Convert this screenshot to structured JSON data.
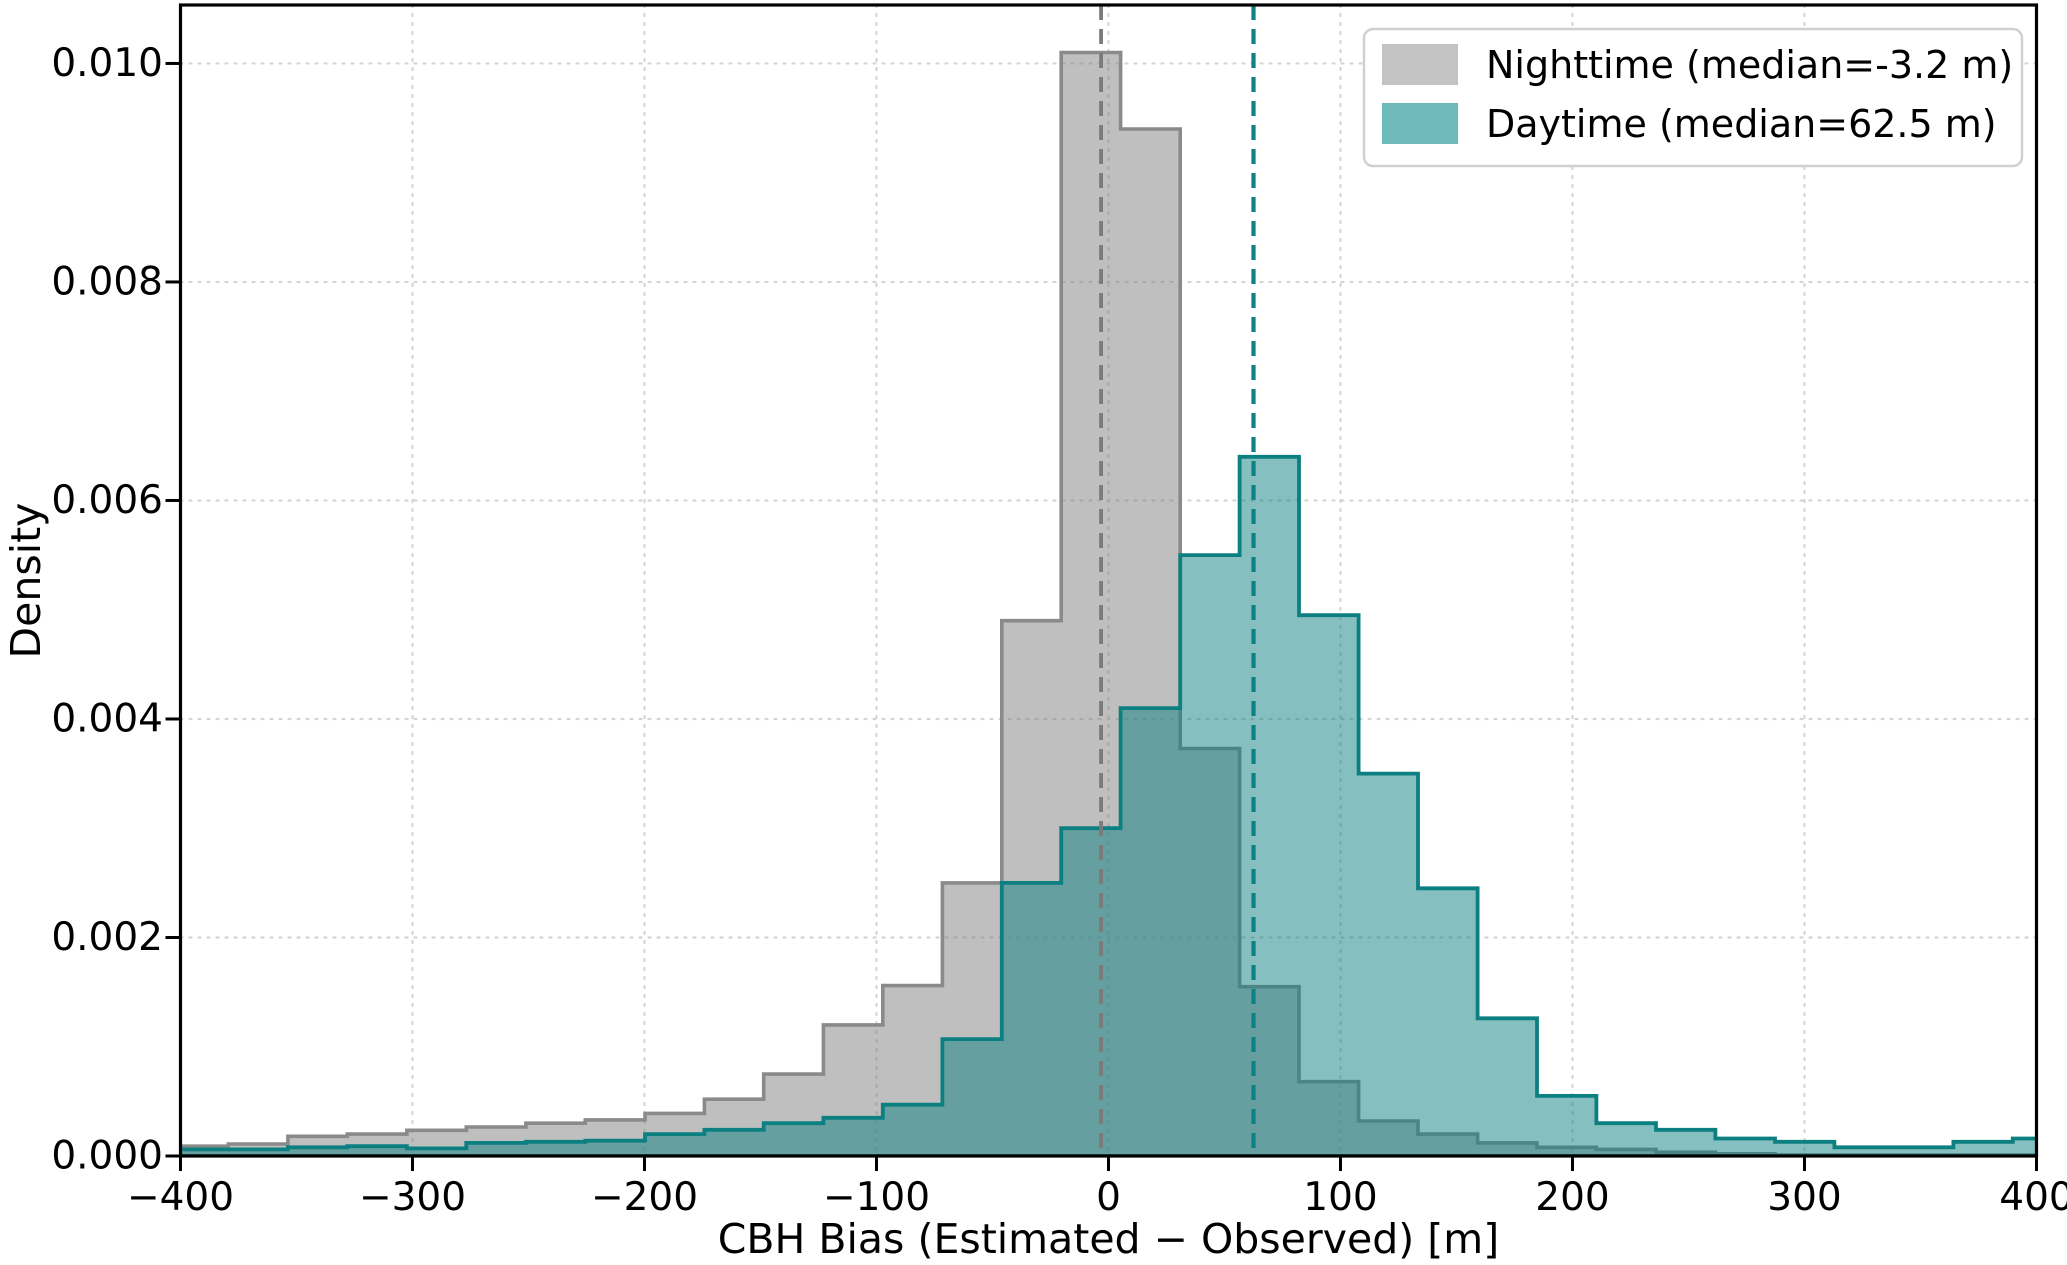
{
  "figure": {
    "background_color": "#ffffff",
    "frame_color": "#000000",
    "grid_color": "#d4d4d4"
  },
  "chart_data": {
    "type": "histogram",
    "title": "",
    "xlabel": "CBH Bias (Estimated − Observed) [m]",
    "ylabel": "Density",
    "xlim": [
      -400,
      400
    ],
    "ylim": [
      0,
      0.010535
    ],
    "grid": true,
    "legend_position": "upper right",
    "xticks": [
      {
        "value": -400,
        "label": "−400"
      },
      {
        "value": -300,
        "label": "−300"
      },
      {
        "value": -200,
        "label": "−200"
      },
      {
        "value": -100,
        "label": "−100"
      },
      {
        "value": 0,
        "label": "0"
      },
      {
        "value": 100,
        "label": "100"
      },
      {
        "value": 200,
        "label": "200"
      },
      {
        "value": 300,
        "label": "300"
      },
      {
        "value": 400,
        "label": "400"
      }
    ],
    "yticks": [
      {
        "value": 0.0,
        "label": "0.000"
      },
      {
        "value": 0.002,
        "label": "0.002"
      },
      {
        "value": 0.004,
        "label": "0.004"
      },
      {
        "value": 0.006,
        "label": "0.006"
      },
      {
        "value": 0.008,
        "label": "0.008"
      },
      {
        "value": 0.01,
        "label": "0.010"
      }
    ],
    "bin_edges": [
      -405.0,
      -379.4,
      -353.7,
      -328.1,
      -302.4,
      -276.8,
      -251.1,
      -225.5,
      -199.8,
      -174.2,
      -148.6,
      -122.9,
      -97.3,
      -71.6,
      -46.0,
      -20.4,
      5.2,
      30.9,
      56.5,
      82.1,
      107.8,
      133.4,
      159.1,
      184.7,
      210.3,
      236.0,
      261.6,
      287.3,
      312.9,
      338.6,
      364.2,
      389.8,
      415.5
    ],
    "series": [
      {
        "name": "Nighttime (median=-3.2 m)",
        "median": -3.2,
        "fill_color": "rgba(128,128,128,0.5)",
        "edge_color": "#8a8a8a",
        "median_line_color": "#7a7a7a",
        "swatch_color": "#c3c3c3",
        "values": [
          9e-05,
          0.00011,
          0.00018,
          0.0002,
          0.000235,
          0.000265,
          0.0003,
          0.00033,
          0.00039,
          0.00052,
          0.00075,
          0.0012,
          0.00156,
          0.0025,
          0.0049,
          0.0101,
          0.0094,
          0.00373,
          0.00155,
          0.00068,
          0.00032,
          0.0002,
          0.00012,
          8e-05,
          6e-05,
          3.5e-05,
          2e-05,
          1e-05,
          1e-05,
          1e-05,
          1e-05,
          1e-05
        ]
      },
      {
        "name": "Daytime (median=62.5 m)",
        "median": 62.5,
        "fill_color": "rgba(13,128,128,0.5)",
        "edge_color": "#0c7f80",
        "median_line_color": "#0f8083",
        "swatch_color": "#6fbaba",
        "values": [
          6e-05,
          6e-05,
          8e-05,
          9e-05,
          7e-05,
          0.00012,
          0.00013,
          0.00014,
          0.0002,
          0.00024,
          0.0003,
          0.00035,
          0.00047,
          0.00107,
          0.0025,
          0.003,
          0.0041,
          0.0055,
          0.0064,
          0.00495,
          0.0035,
          0.00245,
          0.00126,
          0.00055,
          0.0003,
          0.00024,
          0.00016,
          0.00013,
          8e-05,
          8e-05,
          0.00013,
          0.00016
        ]
      }
    ]
  }
}
